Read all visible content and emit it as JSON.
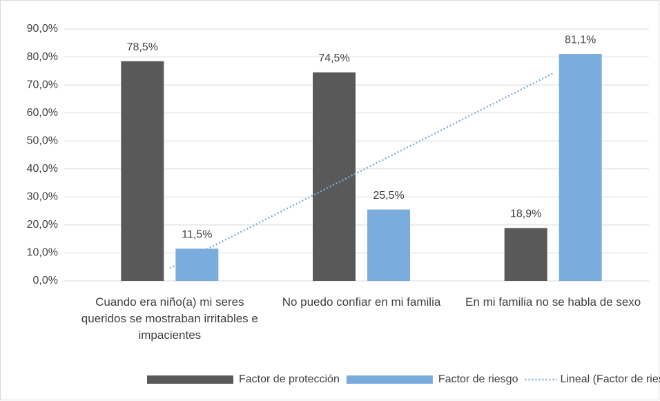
{
  "chart_data": {
    "type": "bar",
    "categories": [
      "Cuando era niño(a) mi seres queridos se mostraban irritables e impacientes",
      "No puedo confiar en mi familia",
      "En mi familia no se habla de sexo"
    ],
    "series": [
      {
        "name": "Factor de protección",
        "color": "#595959",
        "values": [
          78.5,
          74.5,
          18.9
        ],
        "value_labels": [
          "78,5%",
          "74,5%",
          "18,9%"
        ]
      },
      {
        "name": "Factor de riesgo",
        "color": "#7aadde",
        "values": [
          11.5,
          25.5,
          81.1
        ],
        "value_labels": [
          "11,5%",
          "25,5%",
          "81,1%"
        ]
      }
    ],
    "trendline": {
      "name": "Lineal (Factor de riesgo)",
      "kind": "linear",
      "series": 1,
      "color": "#7aadde"
    },
    "ylim": [
      0,
      90
    ],
    "yticks": [
      {
        "value": 0,
        "label": "0,0%"
      },
      {
        "value": 10,
        "label": "10,0%"
      },
      {
        "value": 20,
        "label": "20,0%"
      },
      {
        "value": 30,
        "label": "30,0%"
      },
      {
        "value": 40,
        "label": "40,0%"
      },
      {
        "value": 50,
        "label": "50,0%"
      },
      {
        "value": 60,
        "label": "60,0%"
      },
      {
        "value": 70,
        "label": "70,0%"
      },
      {
        "value": 80,
        "label": "80,0%"
      },
      {
        "value": 90,
        "label": "90,0%"
      }
    ],
    "grid": true,
    "legend": "bottom"
  }
}
